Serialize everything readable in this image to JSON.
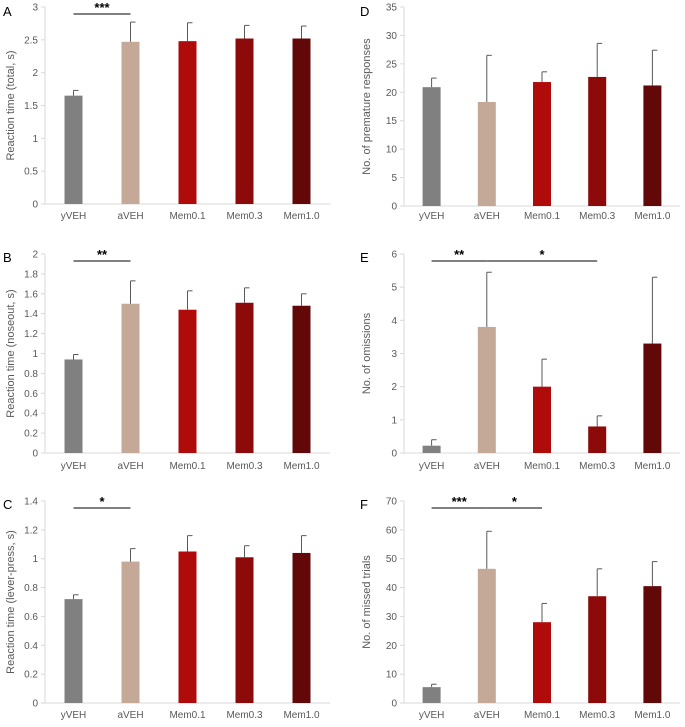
{
  "colors": {
    "bars": [
      "#808080",
      "#c4a898",
      "#b00b0b",
      "#8c0a0a",
      "#620808"
    ],
    "axis": "#d9d9d9",
    "text": "#595959",
    "error": "#595959"
  },
  "chart_data": [
    {
      "panel": "A",
      "type": "bar",
      "title": "",
      "xlabel": "",
      "ylabel": "Reaction time (total, s)",
      "categories": [
        "yVEH",
        "aVEH",
        "Mem0.1",
        "Mem0.3",
        "Mem1.0"
      ],
      "values": [
        1.65,
        2.47,
        2.48,
        2.52,
        2.52
      ],
      "errors": [
        0.08,
        0.3,
        0.28,
        0.2,
        0.19
      ],
      "ylim": [
        0,
        3
      ],
      "ytick_labels": [
        "0",
        "0.5",
        "1",
        "1.5",
        "2",
        "2.5",
        "3"
      ],
      "significance": [
        {
          "from": 0,
          "to": 1,
          "label": "***"
        }
      ]
    },
    {
      "panel": "D",
      "type": "bar",
      "title": "",
      "xlabel": "",
      "ylabel": "No. of premature responses",
      "categories": [
        "yVEH",
        "aVEH",
        "Mem0.1",
        "Mem0.3",
        "Mem1.0"
      ],
      "values": [
        20.9,
        18.3,
        21.8,
        22.7,
        21.2
      ],
      "errors": [
        1.6,
        8.2,
        1.8,
        5.9,
        6.2
      ],
      "ylim": [
        0,
        35
      ],
      "ytick_labels": [
        "0",
        "5",
        "10",
        "15",
        "20",
        "25",
        "30",
        "35"
      ],
      "significance": []
    },
    {
      "panel": "B",
      "type": "bar",
      "title": "",
      "xlabel": "",
      "ylabel": "Reaction time (noseout, s)",
      "categories": [
        "yVEH",
        "aVEH",
        "Mem0.1",
        "Mem0.3",
        "Mem1.0"
      ],
      "values": [
        0.94,
        1.5,
        1.44,
        1.51,
        1.48
      ],
      "errors": [
        0.05,
        0.23,
        0.19,
        0.15,
        0.12
      ],
      "ylim": [
        0,
        2
      ],
      "ytick_labels": [
        "0",
        "0.2",
        "0.4",
        "0.6",
        "0.8",
        "1",
        "1.2",
        "1.4",
        "1.6",
        "1.8",
        "2"
      ],
      "significance": [
        {
          "from": 0,
          "to": 1,
          "label": "**"
        }
      ]
    },
    {
      "panel": "E",
      "type": "bar",
      "title": "",
      "xlabel": "",
      "ylabel": "No. of omissions",
      "categories": [
        "yVEH",
        "aVEH",
        "Mem0.1",
        "Mem0.3",
        "Mem1.0"
      ],
      "values": [
        0.22,
        3.8,
        2.0,
        0.8,
        3.3
      ],
      "errors": [
        0.18,
        1.65,
        0.83,
        0.32,
        2.0
      ],
      "ylim": [
        0,
        6
      ],
      "ytick_labels": [
        "0",
        "1",
        "2",
        "3",
        "4",
        "5",
        "6"
      ],
      "significance": [
        {
          "from": 0,
          "to": 1,
          "label": "**"
        },
        {
          "from": 1,
          "to": 3,
          "label": "*"
        }
      ]
    },
    {
      "panel": "C",
      "type": "bar",
      "title": "",
      "xlabel": "",
      "ylabel": "Reaction time (lever-press, s)",
      "categories": [
        "yVEH",
        "aVEH",
        "Mem0.1",
        "Mem0.3",
        "Mem1.0"
      ],
      "values": [
        0.72,
        0.98,
        1.05,
        1.01,
        1.04
      ],
      "errors": [
        0.03,
        0.09,
        0.11,
        0.08,
        0.12
      ],
      "ylim": [
        0,
        1.4
      ],
      "ytick_labels": [
        "0",
        "0.2",
        "0.4",
        "0.6",
        "0.8",
        "1",
        "1.2",
        "1.4"
      ],
      "significance": [
        {
          "from": 0,
          "to": 1,
          "label": "*"
        }
      ]
    },
    {
      "panel": "F",
      "type": "bar",
      "title": "",
      "xlabel": "",
      "ylabel": "No. of missed trials",
      "categories": [
        "yVEH",
        "aVEH",
        "Mem0.1",
        "Mem0.3",
        "Mem1.0"
      ],
      "values": [
        5.5,
        46.5,
        28.0,
        37.0,
        40.5
      ],
      "errors": [
        1.0,
        13.0,
        6.5,
        9.5,
        8.5
      ],
      "ylim": [
        0,
        70
      ],
      "ytick_labels": [
        "0",
        "10",
        "20",
        "30",
        "40",
        "50",
        "60",
        "70"
      ],
      "significance": [
        {
          "from": 0,
          "to": 1,
          "label": "***"
        },
        {
          "from": 1,
          "to": 2,
          "label": "*"
        }
      ]
    }
  ]
}
